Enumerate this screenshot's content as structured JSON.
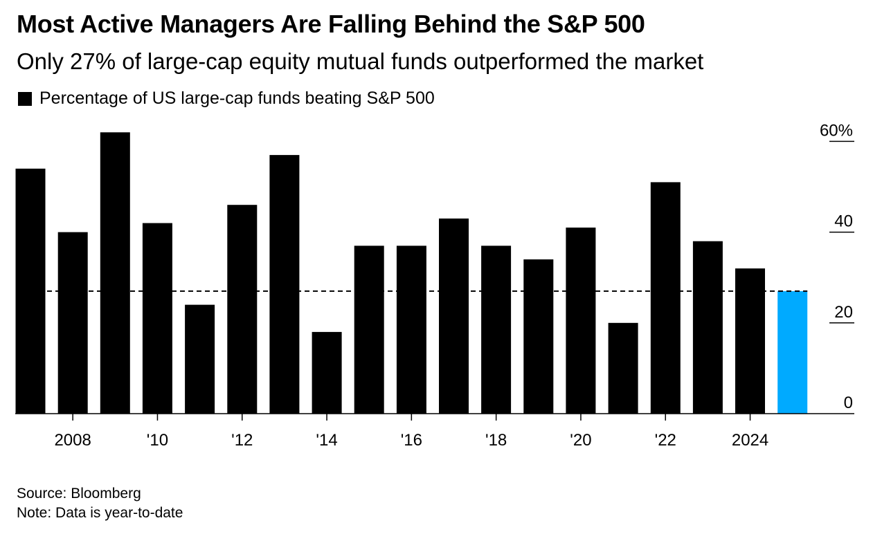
{
  "colors": {
    "bar": "#000000",
    "highlight": "#00aaff",
    "reference_line": "#000000"
  },
  "chart_data": {
    "type": "bar",
    "title": "Most Active Managers Are Falling Behind the S&P 500",
    "subtitle": "Only 27% of large-cap equity mutual funds outperformed the market",
    "legend": [
      "Percentage of US large-cap funds beating S&P 500"
    ],
    "legend_position": "top-left",
    "categories": [
      "2007",
      "2008",
      "2009",
      "2010",
      "2011",
      "2012",
      "2013",
      "2014",
      "2015",
      "2016",
      "2017",
      "2018",
      "2019",
      "2020",
      "2021",
      "2022",
      "2023",
      "2024",
      "2025"
    ],
    "series": [
      {
        "name": "Percentage of US large-cap funds beating S&P 500",
        "values": [
          54,
          40,
          62,
          42,
          24,
          46,
          57,
          18,
          37,
          37,
          43,
          37,
          34,
          41,
          20,
          51,
          38,
          32,
          27
        ]
      }
    ],
    "highlight_index": 18,
    "reference_line": 27,
    "x_tick_labels": [
      {
        "x": "2008",
        "label": "2008"
      },
      {
        "x": "2010",
        "label": "'10"
      },
      {
        "x": "2012",
        "label": "'12"
      },
      {
        "x": "2014",
        "label": "'14"
      },
      {
        "x": "2016",
        "label": "'16"
      },
      {
        "x": "2018",
        "label": "'18"
      },
      {
        "x": "2020",
        "label": "'20"
      },
      {
        "x": "2022",
        "label": "'22"
      },
      {
        "x": "2024",
        "label": "2024"
      }
    ],
    "y_ticks": [
      {
        "value": 0,
        "label": "0"
      },
      {
        "value": 20,
        "label": "20"
      },
      {
        "value": 40,
        "label": "40"
      },
      {
        "value": 60,
        "label": "60%"
      }
    ],
    "ylim": [
      0,
      60
    ],
    "y_axis_position": "right",
    "grid": false
  },
  "footer": {
    "source": "Source: Bloomberg",
    "note": "Note: Data is year-to-date"
  }
}
